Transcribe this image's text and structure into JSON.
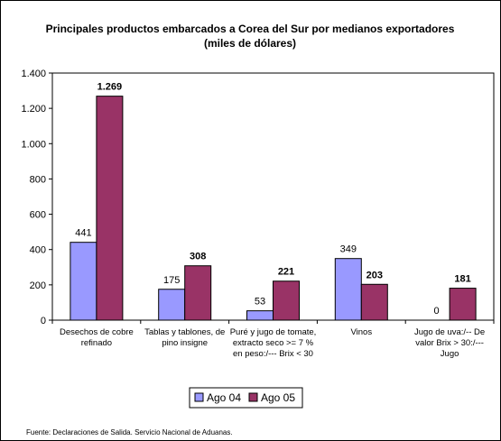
{
  "chart_data": {
    "type": "bar",
    "title": "Principales productos embarcados a Corea del Sur por medianos exportadores",
    "subtitle": "(miles de dólares)",
    "categories": [
      [
        "Desechos de cobre",
        "refinado"
      ],
      [
        "Tablas y tablones, de",
        "pino insigne"
      ],
      [
        "Puré y jugo de tomate,",
        "extracto seco >= 7 %",
        "en peso:/--- Brix < 30"
      ],
      [
        "Vinos"
      ],
      [
        "Jugo de uva:/-- De",
        "valor Brix > 30:/---",
        "Jugo"
      ]
    ],
    "series": [
      {
        "name": "Ago 04",
        "color": "#9999FF",
        "values": [
          441,
          175,
          53,
          349,
          0
        ],
        "labels": [
          "441",
          "175",
          "53",
          "349",
          "0"
        ]
      },
      {
        "name": "Ago 05",
        "color": "#993366",
        "values": [
          1269,
          308,
          221,
          203,
          181
        ],
        "labels": [
          "1.269",
          "308",
          "221",
          "203",
          "181"
        ]
      }
    ],
    "ylim": [
      0,
      1400
    ],
    "yticks": [
      0,
      200,
      400,
      600,
      800,
      1000,
      1200,
      1400
    ],
    "ytick_labels": [
      "0",
      "200",
      "400",
      "600",
      "800",
      "1.000",
      "1.200",
      "1.400"
    ],
    "legend_position": "bottom",
    "grid": false
  },
  "footer": {
    "source": "Fuente: Declaraciones de Salida. Servicio Nacional de Aduanas."
  }
}
